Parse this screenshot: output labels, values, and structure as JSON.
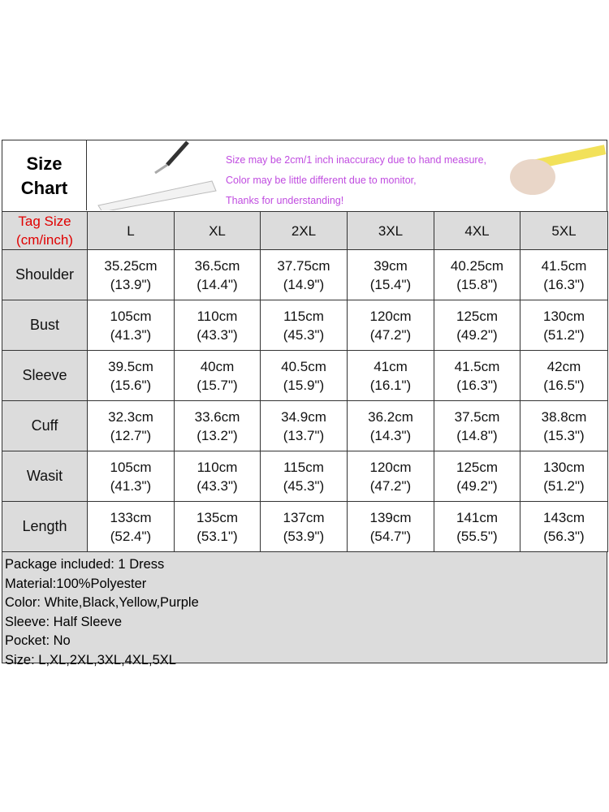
{
  "header": {
    "title": [
      "Size",
      "Chart"
    ],
    "notes": [
      "Size may be 2cm/1 inch inaccuracy due to hand measure,",
      "Color may be little different due to monitor,",
      "Thanks for understanding!"
    ]
  },
  "table": {
    "header_label": [
      "Tag Size",
      "(cm/inch)"
    ],
    "columns": [
      "L",
      "XL",
      "2XL",
      "3XL",
      "4XL",
      "5XL"
    ],
    "rows": [
      {
        "label": "Shoulder",
        "cells": [
          [
            "35.25cm",
            "(13.9\")"
          ],
          [
            "36.5cm",
            "(14.4\")"
          ],
          [
            "37.75cm",
            "(14.9\")"
          ],
          [
            "39cm",
            "(15.4\")"
          ],
          [
            "40.25cm",
            "(15.8\")"
          ],
          [
            "41.5cm",
            "(16.3\")"
          ]
        ]
      },
      {
        "label": "Bust",
        "cells": [
          [
            "105cm",
            "(41.3\")"
          ],
          [
            "110cm",
            "(43.3\")"
          ],
          [
            "115cm",
            "(45.3\")"
          ],
          [
            "120cm",
            "(47.2\")"
          ],
          [
            "125cm",
            "(49.2\")"
          ],
          [
            "130cm",
            "(51.2\")"
          ]
        ]
      },
      {
        "label": "Sleeve",
        "cells": [
          [
            "39.5cm",
            "(15.6\")"
          ],
          [
            "40cm",
            "(15.7\")"
          ],
          [
            "40.5cm",
            "(15.9\")"
          ],
          [
            "41cm",
            "(16.1\")"
          ],
          [
            "41.5cm",
            "(16.3\")"
          ],
          [
            "42cm",
            "(16.5\")"
          ]
        ]
      },
      {
        "label": "Cuff",
        "cells": [
          [
            "32.3cm",
            "(12.7\")"
          ],
          [
            "33.6cm",
            "(13.2\")"
          ],
          [
            "34.9cm",
            "(13.7\")"
          ],
          [
            "36.2cm",
            "(14.3\")"
          ],
          [
            "37.5cm",
            "(14.8\")"
          ],
          [
            "38.8cm",
            "(15.3\")"
          ]
        ]
      },
      {
        "label": "Wasit",
        "cells": [
          [
            "105cm",
            "(41.3\")"
          ],
          [
            "110cm",
            "(43.3\")"
          ],
          [
            "115cm",
            "(45.3\")"
          ],
          [
            "120cm",
            "(47.2\")"
          ],
          [
            "125cm",
            "(49.2\")"
          ],
          [
            "130cm",
            "(51.2\")"
          ]
        ]
      },
      {
        "label": "Length",
        "cells": [
          [
            "133cm",
            "(52.4\")"
          ],
          [
            "135cm",
            "(53.1\")"
          ],
          [
            "137cm",
            "(53.9\")"
          ],
          [
            "139cm",
            "(54.7\")"
          ],
          [
            "141cm",
            "(55.5\")"
          ],
          [
            "143cm",
            "(56.3\")"
          ]
        ]
      }
    ]
  },
  "info": [
    "Package included: 1 Dress",
    "Material:100%Polyester",
    "Color: White,Black,Yellow,Purple",
    "Sleeve: Half Sleeve",
    "Pocket: No",
    "Size: L,XL,2XL,3XL,4XL,5XL"
  ]
}
